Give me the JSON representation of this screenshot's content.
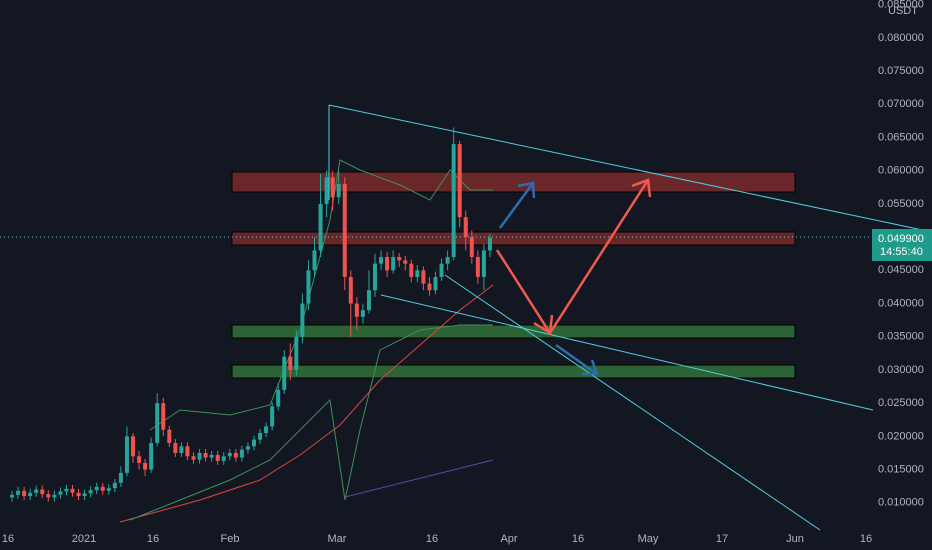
{
  "chart_data": {
    "type": "candlestick",
    "currency": "USDT",
    "up_color": "#26a69a",
    "down_color": "#ef5350",
    "x_labels": [
      "16",
      "2021",
      "16",
      "Feb",
      "Mar",
      "16",
      "Apr",
      "16",
      "May",
      "17",
      "Jun",
      "16"
    ],
    "ylim": [
      0.0059,
      0.0857
    ],
    "yticks": [
      {
        "value": 0.085,
        "label": "0.085000"
      },
      {
        "value": 0.08,
        "label": "0.080000"
      },
      {
        "value": 0.075,
        "label": "0.075000"
      },
      {
        "value": 0.07,
        "label": "0.070000"
      },
      {
        "value": 0.065,
        "label": "0.065000"
      },
      {
        "value": 0.06,
        "label": "0.060000"
      },
      {
        "value": 0.055,
        "label": "0.055000"
      },
      {
        "value": 0.045,
        "label": "0.045000"
      },
      {
        "value": 0.04,
        "label": "0.040000"
      },
      {
        "value": 0.035,
        "label": "0.035000"
      },
      {
        "value": 0.03,
        "label": "0.030000"
      },
      {
        "value": 0.025,
        "label": "0.025000"
      },
      {
        "value": 0.02,
        "label": "0.020000"
      },
      {
        "value": 0.015,
        "label": "0.015000"
      },
      {
        "value": 0.01,
        "label": "0.010000"
      }
    ],
    "last_price": {
      "value": 0.0499,
      "label": "0.049900"
    },
    "countdown": "14:55:40",
    "open": [
      0.0108,
      0.0112,
      0.0118,
      0.011,
      0.0115,
      0.012,
      0.0113,
      0.0108,
      0.0112,
      0.0117,
      0.0121,
      0.0115,
      0.011,
      0.0114,
      0.0119,
      0.0124,
      0.0118,
      0.0122,
      0.013,
      0.0145,
      0.02,
      0.017,
      0.016,
      0.015,
      0.019,
      0.025,
      0.021,
      0.019,
      0.0175,
      0.0185,
      0.017,
      0.0165,
      0.0175,
      0.0168,
      0.0172,
      0.0163,
      0.017,
      0.0175,
      0.0168,
      0.018,
      0.0185,
      0.0195,
      0.0205,
      0.0215,
      0.0245,
      0.027,
      0.032,
      0.03,
      0.035,
      0.04,
      0.045,
      0.048,
      0.055,
      0.059,
      0.056,
      0.058,
      0.044,
      0.04,
      0.038,
      0.039,
      0.042,
      0.046,
      0.047,
      0.045,
      0.047,
      0.0465,
      0.046,
      0.044,
      0.045,
      0.043,
      0.042,
      0.044,
      0.046,
      0.047,
      0.064,
      0.053,
      0.05,
      0.047,
      0.044,
      0.048
    ],
    "high": [
      0.0118,
      0.0124,
      0.0124,
      0.0121,
      0.0126,
      0.0126,
      0.0119,
      0.0118,
      0.0123,
      0.0127,
      0.0127,
      0.0121,
      0.012,
      0.0125,
      0.013,
      0.013,
      0.0128,
      0.0136,
      0.0155,
      0.0215,
      0.0205,
      0.0178,
      0.0166,
      0.0198,
      0.0265,
      0.0258,
      0.0216,
      0.0196,
      0.0191,
      0.0191,
      0.0176,
      0.0181,
      0.0181,
      0.0178,
      0.0178,
      0.0176,
      0.0181,
      0.0181,
      0.0186,
      0.0191,
      0.0201,
      0.0211,
      0.0221,
      0.0251,
      0.028,
      0.033,
      0.034,
      0.036,
      0.0415,
      0.0465,
      0.05,
      0.0595,
      0.06,
      0.06,
      0.06,
      0.059,
      0.045,
      0.041,
      0.04,
      0.045,
      0.0475,
      0.048,
      0.0478,
      0.048,
      0.0476,
      0.0472,
      0.0466,
      0.0458,
      0.0456,
      0.044,
      0.0448,
      0.0468,
      0.048,
      0.0665,
      0.0645,
      0.054,
      0.051,
      0.048,
      0.049,
      0.0505
    ],
    "low": [
      0.0102,
      0.0106,
      0.0104,
      0.0104,
      0.0109,
      0.0107,
      0.0102,
      0.0102,
      0.0106,
      0.0111,
      0.0109,
      0.0104,
      0.0104,
      0.0108,
      0.0113,
      0.0112,
      0.0112,
      0.0116,
      0.0124,
      0.014,
      0.016,
      0.015,
      0.014,
      0.0145,
      0.0185,
      0.02,
      0.0184,
      0.0169,
      0.0169,
      0.0164,
      0.0159,
      0.0159,
      0.0162,
      0.0162,
      0.0157,
      0.0157,
      0.0164,
      0.0162,
      0.0162,
      0.0174,
      0.0179,
      0.0189,
      0.0199,
      0.0209,
      0.0239,
      0.0264,
      0.0285,
      0.029,
      0.034,
      0.039,
      0.044,
      0.047,
      0.053,
      0.054,
      0.055,
      0.042,
      0.035,
      0.036,
      0.037,
      0.0385,
      0.041,
      0.045,
      0.044,
      0.0445,
      0.0455,
      0.045,
      0.0432,
      0.0432,
      0.042,
      0.0412,
      0.0414,
      0.0434,
      0.045,
      0.0465,
      0.0515,
      0.048,
      0.046,
      0.043,
      0.042,
      0.047
    ],
    "close": [
      0.0112,
      0.0118,
      0.011,
      0.0115,
      0.012,
      0.0113,
      0.0108,
      0.0112,
      0.0117,
      0.0121,
      0.0115,
      0.011,
      0.0114,
      0.0119,
      0.0124,
      0.0118,
      0.0122,
      0.013,
      0.0145,
      0.02,
      0.017,
      0.016,
      0.015,
      0.019,
      0.025,
      0.021,
      0.019,
      0.0175,
      0.0185,
      0.017,
      0.0165,
      0.0175,
      0.0168,
      0.0172,
      0.0163,
      0.017,
      0.0175,
      0.0168,
      0.018,
      0.0185,
      0.0195,
      0.0205,
      0.0215,
      0.0245,
      0.027,
      0.032,
      0.03,
      0.035,
      0.04,
      0.045,
      0.048,
      0.055,
      0.059,
      0.056,
      0.058,
      0.044,
      0.04,
      0.038,
      0.039,
      0.042,
      0.046,
      0.047,
      0.045,
      0.047,
      0.0465,
      0.046,
      0.044,
      0.045,
      0.043,
      0.042,
      0.044,
      0.046,
      0.047,
      0.064,
      0.053,
      0.05,
      0.047,
      0.044,
      0.048,
      0.0499
    ]
  }
}
